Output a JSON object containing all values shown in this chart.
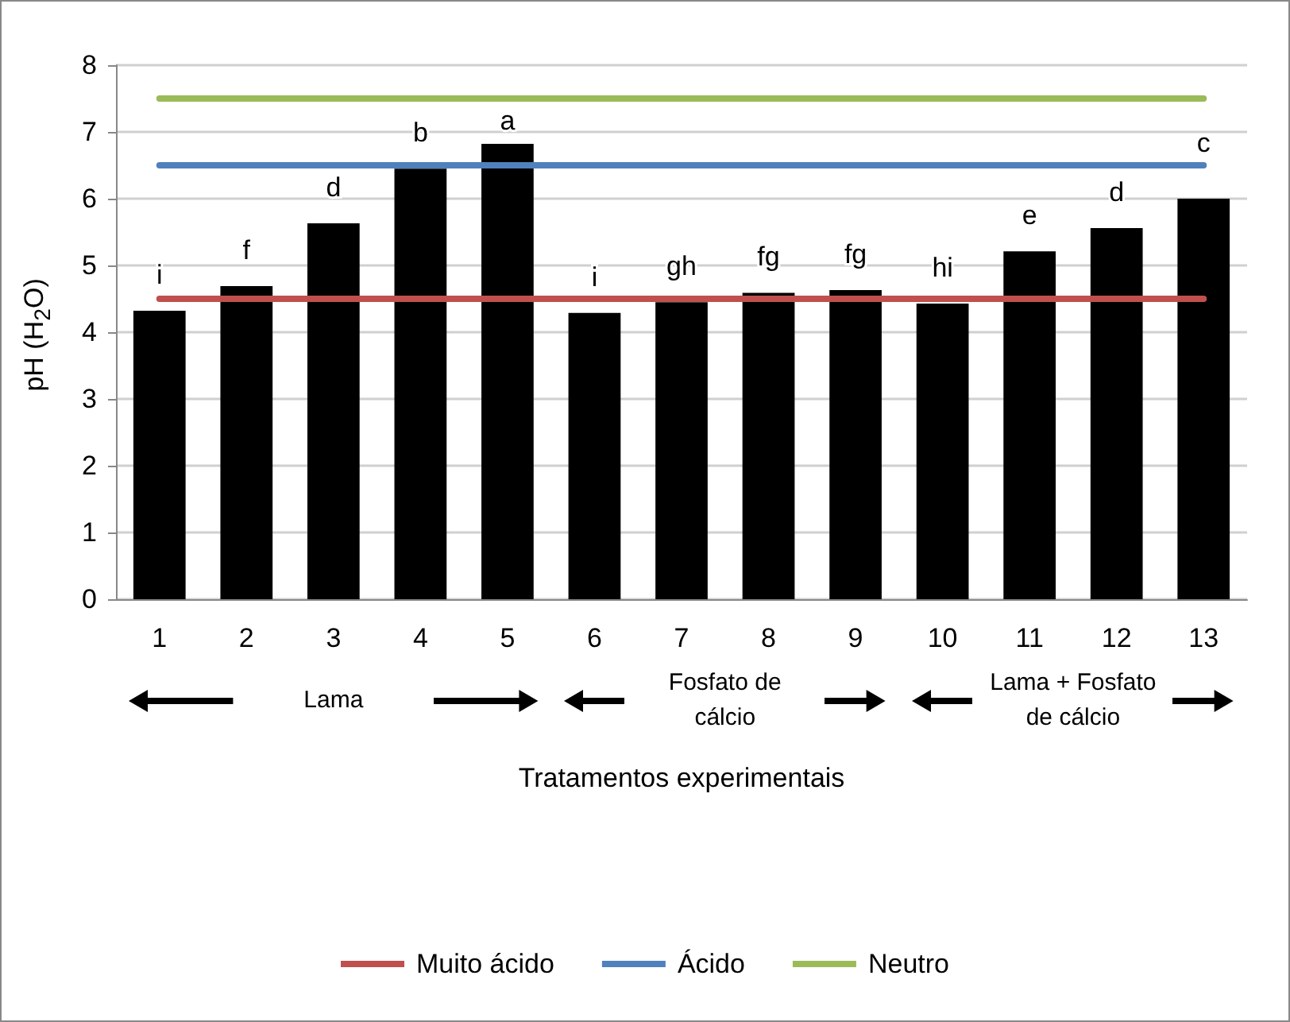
{
  "chart_data": {
    "type": "bar",
    "xlabel": "Tratamentos experimentais",
    "ylabel": "pH (H$_{2}$O)",
    "categories": [
      "1",
      "2",
      "3",
      "4",
      "5",
      "6",
      "7",
      "8",
      "9",
      "10",
      "11",
      "12",
      "13"
    ],
    "series": [
      {
        "type": "bar",
        "color": "#000000",
        "values": [
          4.32,
          4.69,
          5.63,
          6.45,
          6.82,
          4.29,
          4.45,
          4.59,
          4.63,
          4.43,
          5.21,
          5.56,
          6.0
        ],
        "value_labels": [
          "i",
          "f",
          "d",
          "b",
          "a",
          "i",
          "gh",
          "fg",
          "fg",
          "hi",
          "e",
          "d",
          "c"
        ]
      },
      {
        "type": "line",
        "name": "Muito ácido",
        "color": "#c0504d",
        "values": [
          4.5,
          4.5,
          4.5,
          4.5,
          4.5,
          4.5,
          4.5,
          4.5,
          4.5,
          4.5,
          4.5,
          4.5,
          4.5
        ]
      },
      {
        "type": "line",
        "name": "Ácido",
        "color": "#4f81bd",
        "values": [
          6.5,
          6.5,
          6.5,
          6.5,
          6.5,
          6.5,
          6.5,
          6.5,
          6.5,
          6.5,
          6.5,
          6.5,
          6.5
        ]
      },
      {
        "type": "line",
        "name": "Neutro",
        "color": "#9bbb59",
        "values": [
          7.5,
          7.5,
          7.5,
          7.5,
          7.5,
          7.5,
          7.5,
          7.5,
          7.5,
          7.5,
          7.5,
          7.5,
          7.5
        ]
      }
    ],
    "ylim": [
      0,
      8
    ],
    "yticks": [
      0,
      1,
      2,
      3,
      4,
      5,
      6,
      7,
      8
    ],
    "grid": "y",
    "legend": "bottom",
    "marker": "none",
    "annotations": [
      "Lama",
      "Fosfato de cálcio",
      "Lama + Fosfato de cálcio"
    ]
  }
}
